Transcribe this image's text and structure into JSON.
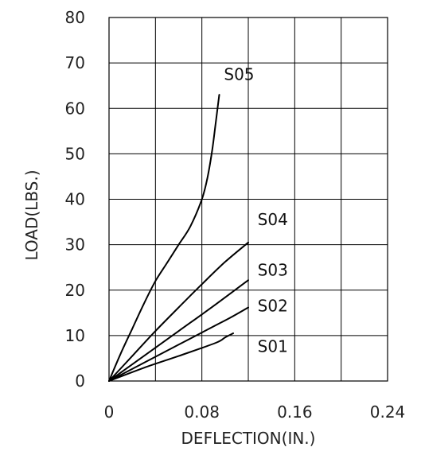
{
  "chart_data": {
    "type": "line",
    "title": "",
    "xlabel": "DEFLECTION(IN.)",
    "ylabel": "LOAD(LBS.)",
    "xlim": [
      0,
      0.24
    ],
    "ylim": [
      0,
      80
    ],
    "x_ticks": [
      0,
      0.04,
      0.08,
      0.12,
      0.16,
      0.2,
      0.24
    ],
    "x_tick_labels": [
      "0",
      "",
      "0.08",
      "",
      "0.16",
      "",
      "0.24"
    ],
    "y_ticks": [
      0,
      10,
      20,
      30,
      40,
      50,
      60,
      70,
      80
    ],
    "y_tick_labels": [
      "0",
      "10",
      "20",
      "30",
      "40",
      "50",
      "60",
      "70",
      "80"
    ],
    "grid": true,
    "legend": "none",
    "series": [
      {
        "name": "S01",
        "x": [
          0,
          0.03,
          0.06,
          0.092,
          0.1,
          0.107
        ],
        "y": [
          0,
          2.9,
          5.5,
          8.4,
          9.6,
          10.5
        ]
      },
      {
        "name": "S02",
        "x": [
          0,
          0.03,
          0.06,
          0.09,
          0.105,
          0.12
        ],
        "y": [
          0,
          4,
          8,
          12,
          14,
          16.2
        ]
      },
      {
        "name": "S03",
        "x": [
          0,
          0.03,
          0.06,
          0.09,
          0.12
        ],
        "y": [
          0,
          5.5,
          11,
          16.5,
          22.2
        ]
      },
      {
        "name": "S04",
        "x": [
          0,
          0.02,
          0.04,
          0.06,
          0.08,
          0.1,
          0.12
        ],
        "y": [
          0,
          5.5,
          11,
          16.2,
          21.3,
          26.2,
          30.5
        ]
      },
      {
        "name": "S05",
        "x": [
          0,
          0.01,
          0.02,
          0.03,
          0.04,
          0.05,
          0.06,
          0.07,
          0.08,
          0.085,
          0.089,
          0.092,
          0.095
        ],
        "y": [
          0,
          6,
          11.5,
          17,
          22,
          26,
          30,
          34,
          40,
          45,
          51,
          57,
          63
        ]
      }
    ],
    "annotations": [
      {
        "text": "S05",
        "x": 0.099,
        "y": 67.5
      },
      {
        "text": "S04",
        "x": 0.128,
        "y": 35.5
      },
      {
        "text": "S03",
        "x": 0.128,
        "y": 24.4
      },
      {
        "text": "S02",
        "x": 0.128,
        "y": 16.5
      },
      {
        "text": "S01",
        "x": 0.128,
        "y": 7.6
      }
    ]
  }
}
